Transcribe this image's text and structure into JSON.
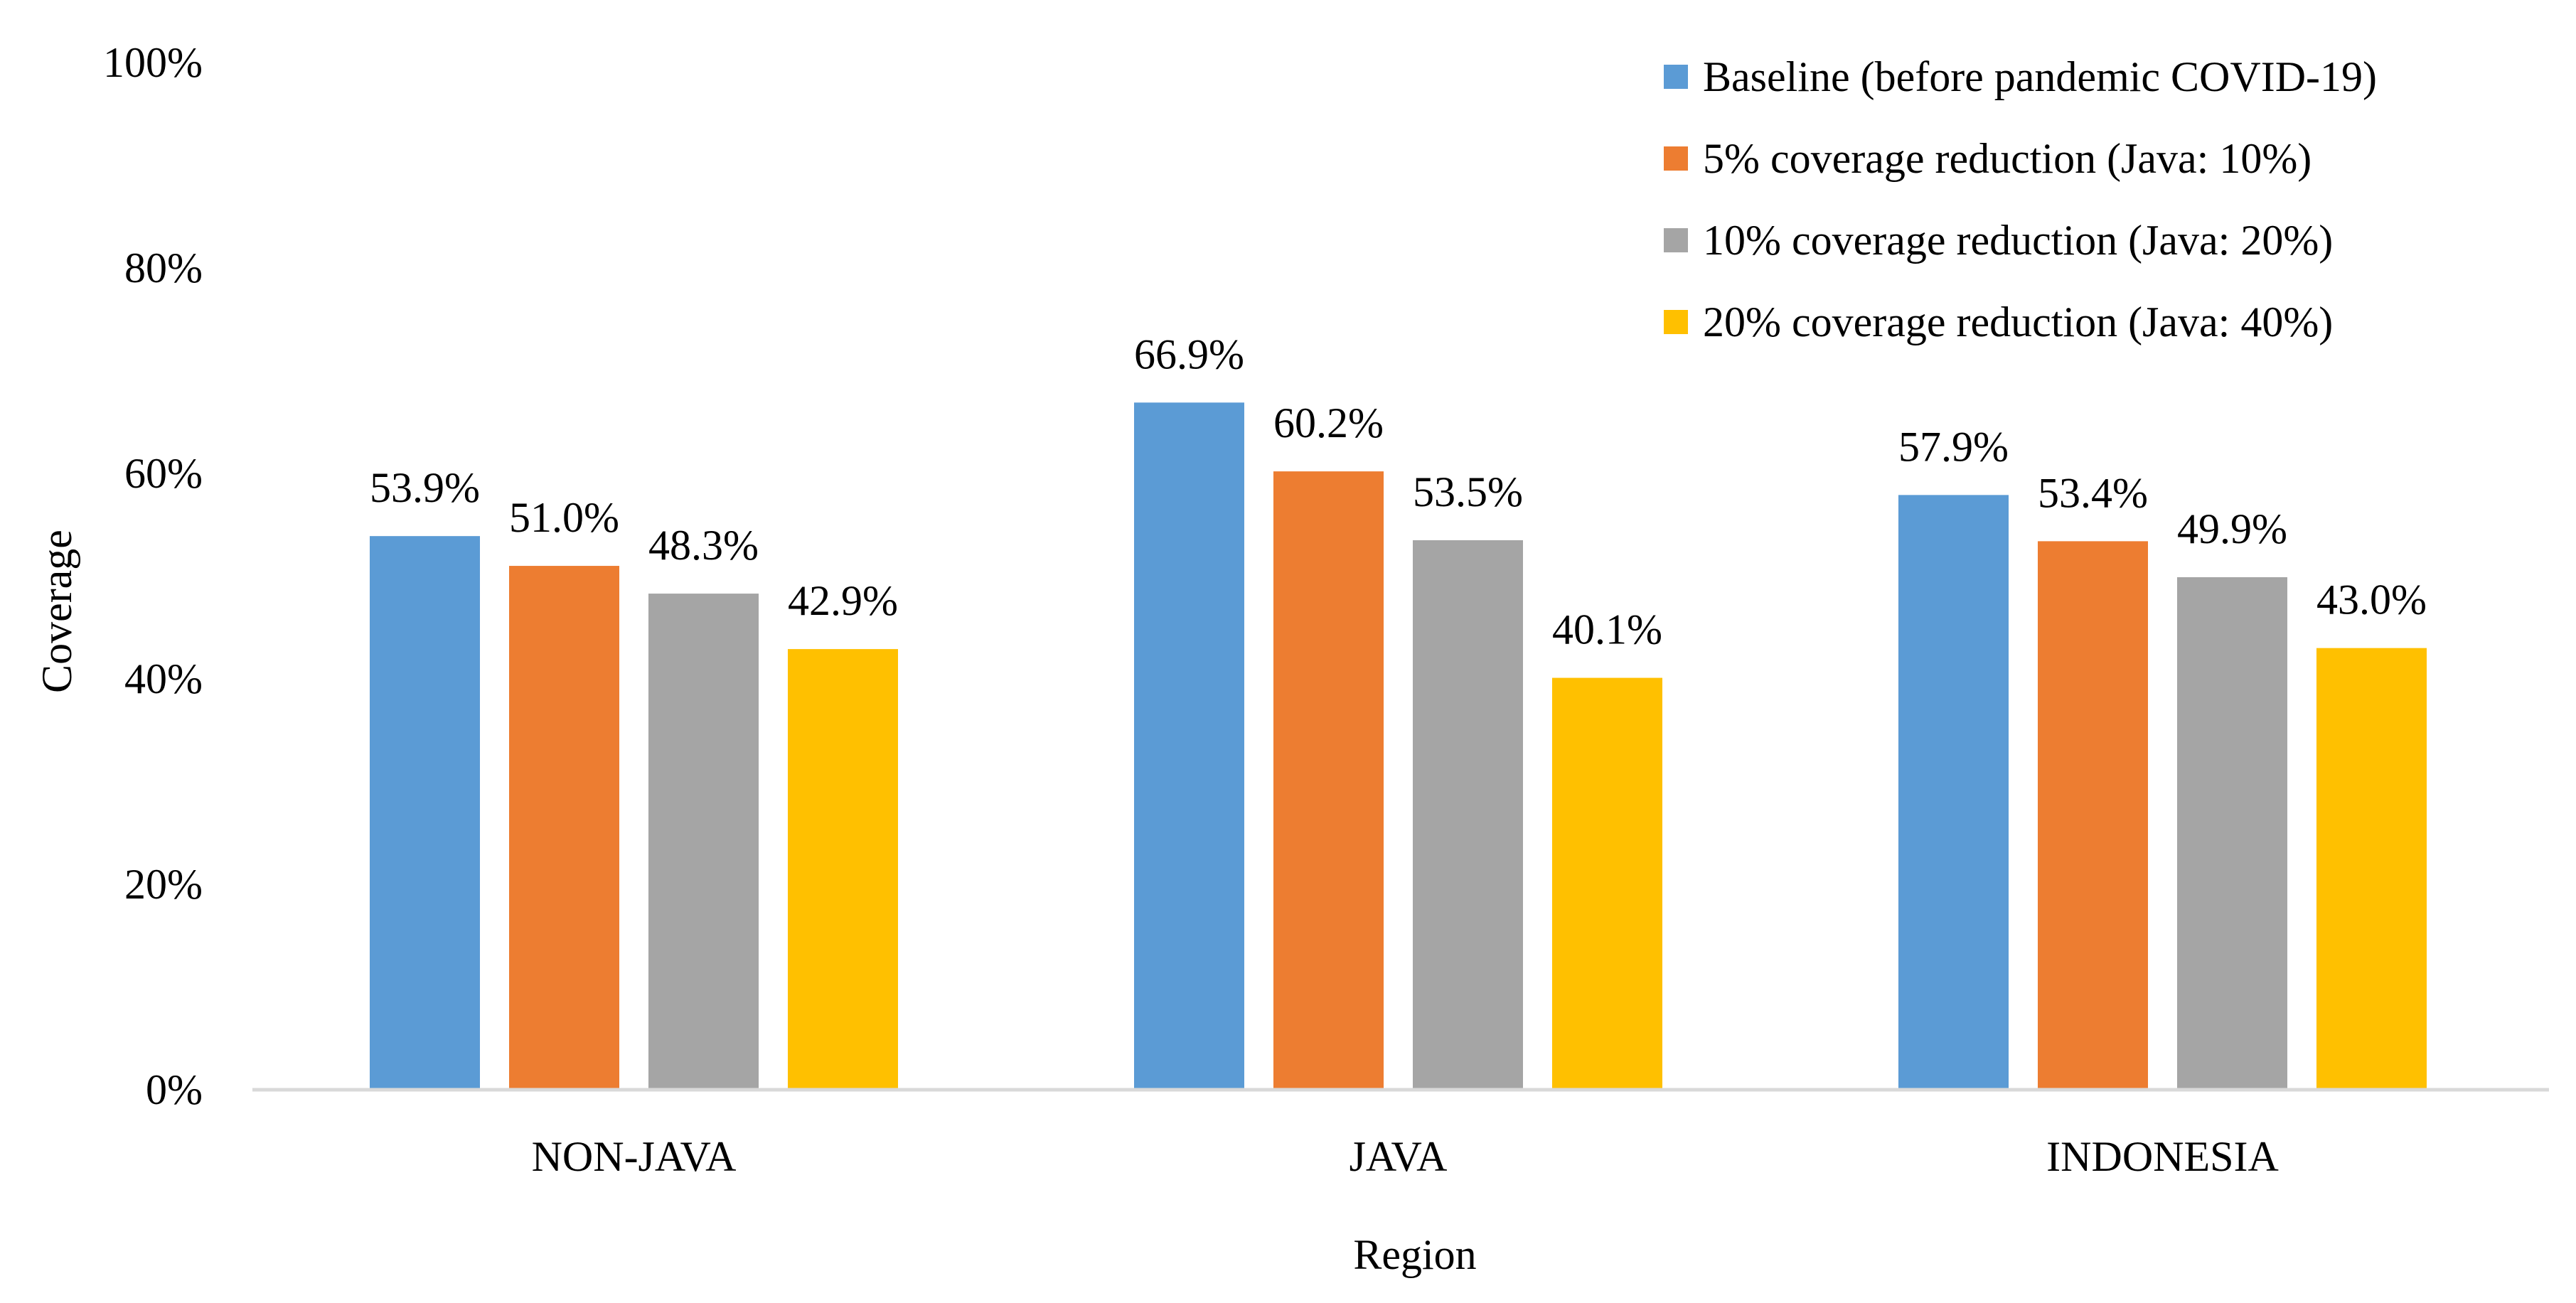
{
  "chart_data": {
    "type": "bar",
    "title": "",
    "xlabel": "Region",
    "ylabel": "Coverage",
    "ylim": [
      0,
      100
    ],
    "yticks": [
      "0%",
      "20%",
      "40%",
      "60%",
      "80%",
      "100%"
    ],
    "ytick_values": [
      0,
      20,
      40,
      60,
      80,
      100
    ],
    "grid": false,
    "legend_position": "top-right",
    "categories": [
      "NON-JAVA",
      "JAVA",
      "INDONESIA"
    ],
    "series": [
      {
        "name": "Baseline (before pandemic COVID-19)",
        "color": "#5B9BD5",
        "values": [
          53.9,
          66.9,
          57.9
        ],
        "labels": [
          "53.9%",
          "66.9%",
          "57.9%"
        ]
      },
      {
        "name": "5% coverage reduction (Java: 10%)",
        "color": "#ED7D31",
        "values": [
          51.0,
          60.2,
          53.4
        ],
        "labels": [
          "51.0%",
          "60.2%",
          "53.4%"
        ]
      },
      {
        "name": "10% coverage reduction (Java: 20%)",
        "color": "#A5A5A5",
        "values": [
          48.3,
          53.5,
          49.9
        ],
        "labels": [
          "48.3%",
          "53.5%",
          "49.9%"
        ]
      },
      {
        "name": "20% coverage reduction (Java: 40%)",
        "color": "#FFC000",
        "values": [
          42.9,
          40.1,
          43.0
        ],
        "labels": [
          "42.9%",
          "40.1%",
          "43.0%"
        ]
      }
    ]
  }
}
